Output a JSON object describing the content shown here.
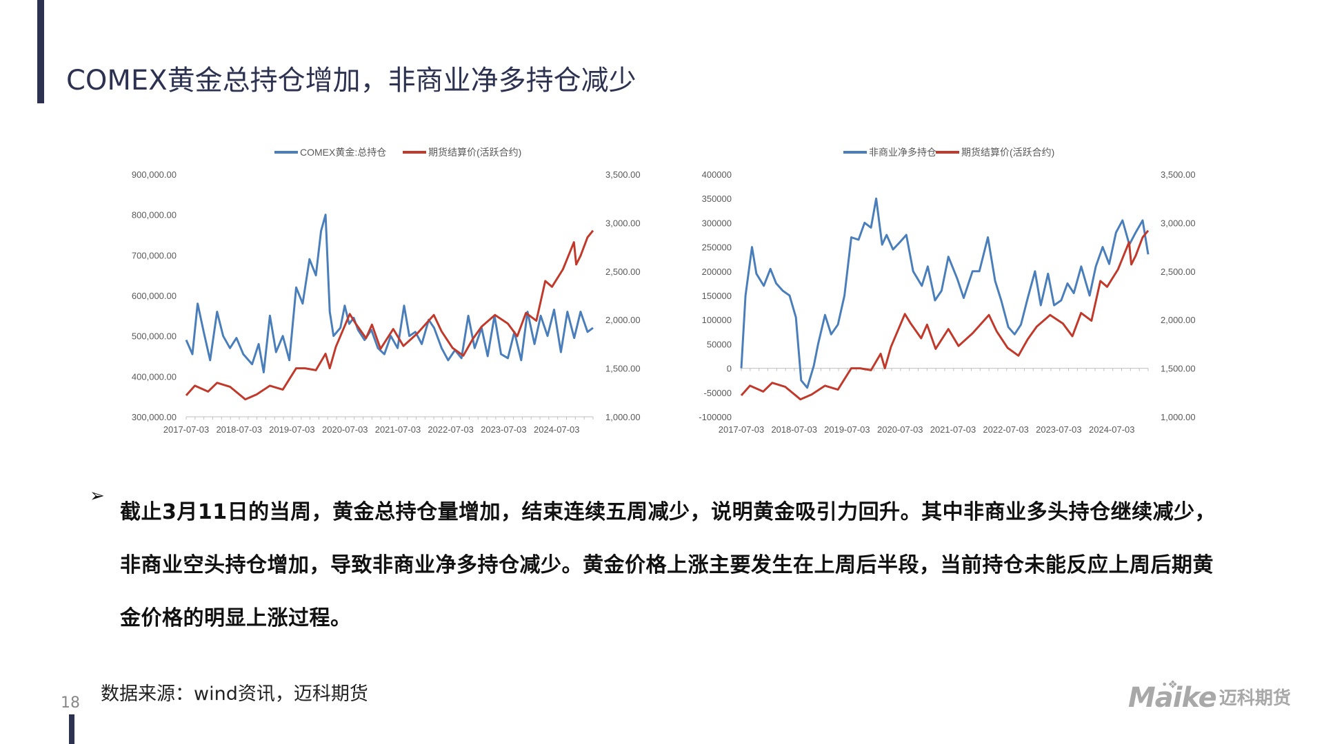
{
  "page": {
    "title": "COMEX黄金总持仓增加，非商业净多持仓减少",
    "number": "18",
    "source": "数据来源：wind资讯，迈科期货",
    "bullet": "截止3月11日的当周，黄金总持仓量增加，结束连续五周减少，说明黄金吸引力回升。其中非商业多头持仓继续减少，非商业空头持仓增加，导致非商业净多持仓减少。黄金价格上涨主要发生在上周后半段，当前持仓未能反应上周后期黄金价格的明显上涨过程。",
    "bullet_marker": "➢",
    "logo_en": "Maike",
    "logo_cn": "迈科期货",
    "logo_dots": "•❖"
  },
  "colors": {
    "blue": "#4a7ebb",
    "red": "#c0392b",
    "accent": "#2d3250"
  },
  "chart_data": [
    {
      "type": "line",
      "x_ticks": [
        "2017-07-03",
        "2018-07-03",
        "2019-07-03",
        "2020-07-03",
        "2021-07-03",
        "2022-07-03",
        "2023-07-03",
        "2024-07-03"
      ],
      "x_range": [
        "2017-07-03",
        "2025-03-11"
      ],
      "left_axis": {
        "min": 300000,
        "max": 900000,
        "step": 100000,
        "tick_labels": [
          "300,000.00",
          "400,000.00",
          "500,000.00",
          "600,000.00",
          "700,000.00",
          "800,000.00",
          "900,000.00"
        ]
      },
      "right_axis": {
        "min": 1000,
        "max": 3500,
        "step": 500,
        "tick_labels": [
          "1,000.00",
          "1,500.00",
          "2,000.00",
          "2,500.00",
          "3,000.00",
          "3,500.00"
        ]
      },
      "grid": false,
      "legend_position": "top",
      "series": [
        {
          "name": "COMEX黄金:总持仓",
          "axis": "left",
          "color": "#4a7ebb",
          "points": [
            [
              "2017-07-03",
              490000
            ],
            [
              "2017-08-15",
              455000
            ],
            [
              "2017-09-20",
              580000
            ],
            [
              "2017-11-01",
              510000
            ],
            [
              "2017-12-15",
              440000
            ],
            [
              "2018-02-01",
              560000
            ],
            [
              "2018-03-15",
              500000
            ],
            [
              "2018-05-01",
              470000
            ],
            [
              "2018-06-15",
              495000
            ],
            [
              "2018-08-01",
              455000
            ],
            [
              "2018-10-01",
              430000
            ],
            [
              "2018-11-15",
              480000
            ],
            [
              "2018-12-20",
              410000
            ],
            [
              "2019-02-01",
              550000
            ],
            [
              "2019-03-15",
              460000
            ],
            [
              "2019-05-01",
              500000
            ],
            [
              "2019-06-15",
              440000
            ],
            [
              "2019-08-01",
              620000
            ],
            [
              "2019-09-15",
              580000
            ],
            [
              "2019-11-01",
              690000
            ],
            [
              "2019-12-15",
              650000
            ],
            [
              "2020-01-20",
              760000
            ],
            [
              "2020-02-20",
              800000
            ],
            [
              "2020-03-20",
              560000
            ],
            [
              "2020-04-15",
              500000
            ],
            [
              "2020-06-01",
              520000
            ],
            [
              "2020-07-01",
              575000
            ],
            [
              "2020-08-01",
              530000
            ],
            [
              "2020-09-01",
              545000
            ],
            [
              "2020-10-01",
              515000
            ],
            [
              "2020-11-15",
              490000
            ],
            [
              "2021-01-01",
              515000
            ],
            [
              "2021-02-15",
              470000
            ],
            [
              "2021-04-01",
              455000
            ],
            [
              "2021-05-15",
              500000
            ],
            [
              "2021-07-01",
              470000
            ],
            [
              "2021-08-15",
              575000
            ],
            [
              "2021-09-20",
              500000
            ],
            [
              "2021-11-01",
              510000
            ],
            [
              "2021-12-15",
              480000
            ],
            [
              "2022-02-01",
              540000
            ],
            [
              "2022-03-10",
              520000
            ],
            [
              "2022-05-01",
              470000
            ],
            [
              "2022-06-15",
              440000
            ],
            [
              "2022-08-01",
              465000
            ],
            [
              "2022-09-15",
              445000
            ],
            [
              "2022-11-01",
              550000
            ],
            [
              "2022-12-15",
              470000
            ],
            [
              "2023-02-01",
              520000
            ],
            [
              "2023-03-15",
              450000
            ],
            [
              "2023-05-01",
              550000
            ],
            [
              "2023-06-15",
              455000
            ],
            [
              "2023-08-01",
              445000
            ],
            [
              "2023-09-15",
              510000
            ],
            [
              "2023-11-01",
              440000
            ],
            [
              "2023-12-15",
              560000
            ],
            [
              "2024-02-01",
              480000
            ],
            [
              "2024-03-15",
              550000
            ],
            [
              "2024-05-01",
              500000
            ],
            [
              "2024-06-15",
              565000
            ],
            [
              "2024-08-01",
              460000
            ],
            [
              "2024-09-15",
              560000
            ],
            [
              "2024-11-01",
              495000
            ],
            [
              "2024-12-15",
              560000
            ],
            [
              "2025-02-01",
              510000
            ],
            [
              "2025-03-11",
              520000
            ]
          ]
        },
        {
          "name": "期货结算价(活跃合约)",
          "axis": "right",
          "color": "#c0392b",
          "points": [
            [
              "2017-07-03",
              1220
            ],
            [
              "2017-09-01",
              1320
            ],
            [
              "2017-12-01",
              1260
            ],
            [
              "2018-02-01",
              1350
            ],
            [
              "2018-05-01",
              1310
            ],
            [
              "2018-08-15",
              1180
            ],
            [
              "2018-11-01",
              1230
            ],
            [
              "2019-02-01",
              1320
            ],
            [
              "2019-05-01",
              1280
            ],
            [
              "2019-08-01",
              1500
            ],
            [
              "2019-10-01",
              1500
            ],
            [
              "2019-12-15",
              1480
            ],
            [
              "2020-02-20",
              1650
            ],
            [
              "2020-03-20",
              1500
            ],
            [
              "2020-05-01",
              1720
            ],
            [
              "2020-08-05",
              2060
            ],
            [
              "2020-09-15",
              1960
            ],
            [
              "2020-11-25",
              1810
            ],
            [
              "2021-01-05",
              1950
            ],
            [
              "2021-03-05",
              1700
            ],
            [
              "2021-06-01",
              1905
            ],
            [
              "2021-08-10",
              1730
            ],
            [
              "2021-11-15",
              1860
            ],
            [
              "2022-03-08",
              2050
            ],
            [
              "2022-05-01",
              1880
            ],
            [
              "2022-07-15",
              1710
            ],
            [
              "2022-09-28",
              1630
            ],
            [
              "2022-12-01",
              1800
            ],
            [
              "2023-02-01",
              1930
            ],
            [
              "2023-05-04",
              2050
            ],
            [
              "2023-08-01",
              1960
            ],
            [
              "2023-10-05",
              1830
            ],
            [
              "2023-12-04",
              2070
            ],
            [
              "2024-02-14",
              1990
            ],
            [
              "2024-04-15",
              2400
            ],
            [
              "2024-06-01",
              2340
            ],
            [
              "2024-08-15",
              2520
            ],
            [
              "2024-10-30",
              2800
            ],
            [
              "2024-11-15",
              2570
            ],
            [
              "2024-12-15",
              2660
            ],
            [
              "2025-02-01",
              2850
            ],
            [
              "2025-03-11",
              2920
            ]
          ]
        }
      ]
    },
    {
      "type": "line",
      "x_ticks": [
        "2017-07-03",
        "2018-07-03",
        "2019-07-03",
        "2020-07-03",
        "2021-07-03",
        "2022-07-03",
        "2023-07-03",
        "2024-07-03"
      ],
      "x_range": [
        "2017-07-03",
        "2025-03-11"
      ],
      "left_axis": {
        "min": -100000,
        "max": 400000,
        "step": 50000,
        "tick_labels": [
          "-100000",
          "-50000",
          "0",
          "50000",
          "100000",
          "150000",
          "200000",
          "250000",
          "300000",
          "350000",
          "400000"
        ]
      },
      "right_axis": {
        "min": 1000,
        "max": 3500,
        "step": 500,
        "tick_labels": [
          "1,000.00",
          "1,500.00",
          "2,000.00",
          "2,500.00",
          "3,000.00",
          "3,500.00"
        ]
      },
      "grid": false,
      "legend_position": "top",
      "series": [
        {
          "name": "非商业净多持仓",
          "axis": "left",
          "color": "#4a7ebb",
          "points": [
            [
              "2017-07-03",
              0
            ],
            [
              "2017-08-01",
              150000
            ],
            [
              "2017-09-15",
              250000
            ],
            [
              "2017-10-15",
              195000
            ],
            [
              "2017-12-05",
              170000
            ],
            [
              "2018-01-20",
              205000
            ],
            [
              "2018-03-01",
              175000
            ],
            [
              "2018-04-15",
              160000
            ],
            [
              "2018-06-01",
              150000
            ],
            [
              "2018-07-15",
              105000
            ],
            [
              "2018-08-20",
              -25000
            ],
            [
              "2018-10-01",
              -40000
            ],
            [
              "2018-11-15",
              5000
            ],
            [
              "2018-12-15",
              50000
            ],
            [
              "2019-02-01",
              110000
            ],
            [
              "2019-03-15",
              70000
            ],
            [
              "2019-05-01",
              90000
            ],
            [
              "2019-06-15",
              150000
            ],
            [
              "2019-08-01",
              270000
            ],
            [
              "2019-09-20",
              265000
            ],
            [
              "2019-11-01",
              300000
            ],
            [
              "2019-12-15",
              290000
            ],
            [
              "2020-01-20",
              350000
            ],
            [
              "2020-03-01",
              255000
            ],
            [
              "2020-04-01",
              275000
            ],
            [
              "2020-05-15",
              245000
            ],
            [
              "2020-07-01",
              260000
            ],
            [
              "2020-08-15",
              275000
            ],
            [
              "2020-10-01",
              200000
            ],
            [
              "2020-11-30",
              170000
            ],
            [
              "2021-01-10",
              210000
            ],
            [
              "2021-03-01",
              140000
            ],
            [
              "2021-04-15",
              160000
            ],
            [
              "2021-06-01",
              230000
            ],
            [
              "2021-08-01",
              185000
            ],
            [
              "2021-09-15",
              145000
            ],
            [
              "2021-11-15",
              200000
            ],
            [
              "2022-01-01",
              200000
            ],
            [
              "2022-03-01",
              270000
            ],
            [
              "2022-04-20",
              180000
            ],
            [
              "2022-06-01",
              140000
            ],
            [
              "2022-07-20",
              85000
            ],
            [
              "2022-09-01",
              70000
            ],
            [
              "2022-10-15",
              90000
            ],
            [
              "2022-12-01",
              145000
            ],
            [
              "2023-01-20",
              200000
            ],
            [
              "2023-03-01",
              130000
            ],
            [
              "2023-04-20",
              195000
            ],
            [
              "2023-06-01",
              130000
            ],
            [
              "2023-07-20",
              140000
            ],
            [
              "2023-09-01",
              175000
            ],
            [
              "2023-10-15",
              155000
            ],
            [
              "2023-12-05",
              210000
            ],
            [
              "2024-02-01",
              150000
            ],
            [
              "2024-03-15",
              210000
            ],
            [
              "2024-05-01",
              250000
            ],
            [
              "2024-06-15",
              215000
            ],
            [
              "2024-08-01",
              280000
            ],
            [
              "2024-09-15",
              305000
            ],
            [
              "2024-11-01",
              255000
            ],
            [
              "2024-12-15",
              280000
            ],
            [
              "2025-02-01",
              305000
            ],
            [
              "2025-03-11",
              235000
            ]
          ]
        },
        {
          "name": "期货结算价(活跃合约)",
          "axis": "right",
          "color": "#c0392b",
          "points": [
            [
              "2017-07-03",
              1220
            ],
            [
              "2017-09-01",
              1320
            ],
            [
              "2017-12-01",
              1260
            ],
            [
              "2018-02-01",
              1350
            ],
            [
              "2018-05-01",
              1310
            ],
            [
              "2018-08-15",
              1180
            ],
            [
              "2018-11-01",
              1230
            ],
            [
              "2019-02-01",
              1320
            ],
            [
              "2019-05-01",
              1280
            ],
            [
              "2019-08-01",
              1500
            ],
            [
              "2019-10-01",
              1500
            ],
            [
              "2019-12-15",
              1480
            ],
            [
              "2020-02-20",
              1650
            ],
            [
              "2020-03-20",
              1500
            ],
            [
              "2020-05-01",
              1720
            ],
            [
              "2020-08-05",
              2060
            ],
            [
              "2020-09-15",
              1960
            ],
            [
              "2020-11-25",
              1810
            ],
            [
              "2021-01-05",
              1950
            ],
            [
              "2021-03-05",
              1700
            ],
            [
              "2021-06-01",
              1905
            ],
            [
              "2021-08-10",
              1730
            ],
            [
              "2021-11-15",
              1860
            ],
            [
              "2022-03-08",
              2050
            ],
            [
              "2022-05-01",
              1880
            ],
            [
              "2022-07-15",
              1710
            ],
            [
              "2022-09-28",
              1630
            ],
            [
              "2022-12-01",
              1800
            ],
            [
              "2023-02-01",
              1930
            ],
            [
              "2023-05-04",
              2050
            ],
            [
              "2023-08-01",
              1960
            ],
            [
              "2023-10-05",
              1830
            ],
            [
              "2023-12-04",
              2070
            ],
            [
              "2024-02-14",
              1990
            ],
            [
              "2024-04-15",
              2400
            ],
            [
              "2024-06-01",
              2340
            ],
            [
              "2024-08-15",
              2520
            ],
            [
              "2024-10-30",
              2800
            ],
            [
              "2024-11-15",
              2570
            ],
            [
              "2024-12-15",
              2660
            ],
            [
              "2025-02-01",
              2850
            ],
            [
              "2025-03-11",
              2920
            ]
          ]
        }
      ]
    }
  ]
}
